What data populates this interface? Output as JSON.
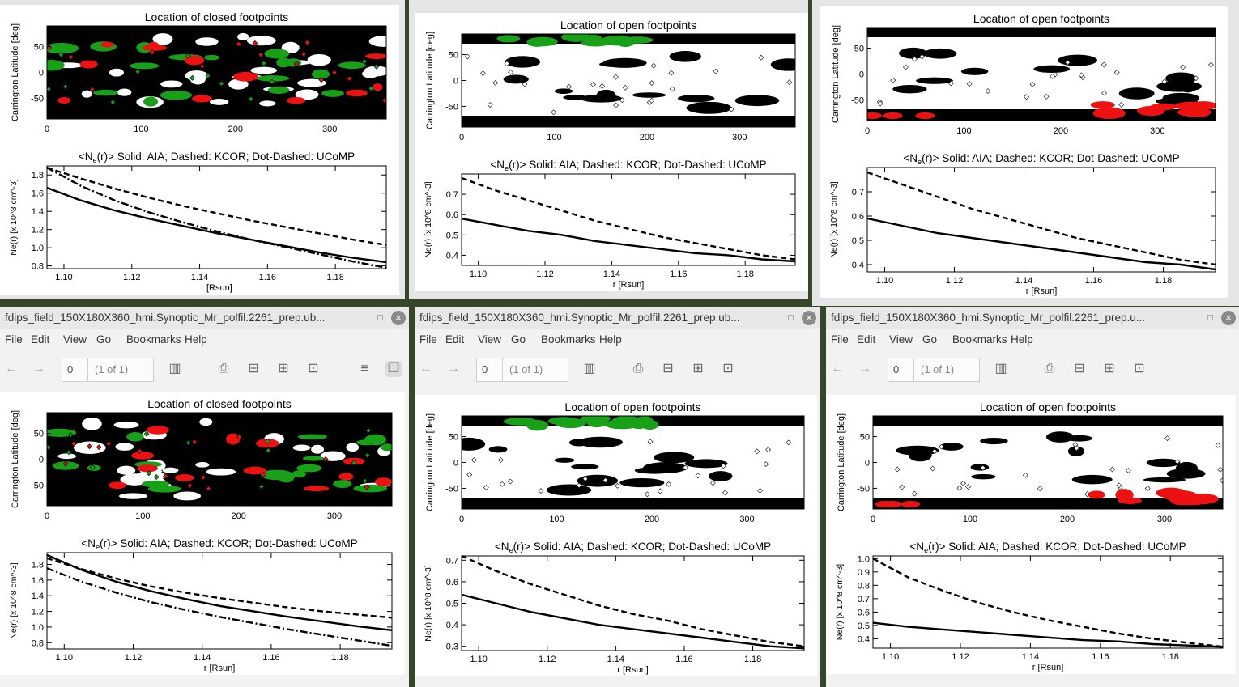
{
  "desktop": {
    "viewers": [
      {
        "title": "",
        "show_chrome": false,
        "page_value": "",
        "page_of": ""
      },
      {
        "title": "",
        "show_chrome": false,
        "page_value": "",
        "page_of": ""
      },
      {
        "title": "",
        "show_chrome": false,
        "page_value": "",
        "page_of": ""
      },
      {
        "title": "fdips_field_150X180X360_hmi.Synoptic_Mr_polfil.2261_prep.ub...",
        "show_chrome": true,
        "page_value": "0",
        "page_of": "(1 of 1)"
      },
      {
        "title": "fdips_field_150X180X360_hmi.Synoptic_Mr_polfil.2261_prep.ub...",
        "show_chrome": true,
        "page_value": "0",
        "page_of": "(1 of 1)"
      },
      {
        "title": "fdips_field_150X180X360_hmi.Synoptic_Mr_polfil.2261_prep.u...",
        "show_chrome": true,
        "page_value": "0",
        "page_of": "(1 of 1)"
      }
    ],
    "menu": [
      "File",
      "Edit",
      "View",
      "Go",
      "Bookmarks",
      "Help"
    ]
  },
  "plots": [
    {
      "map_title": "Location of closed footpoints",
      "kind": "closed",
      "map_ylabel": "Carrington Latitude [deg]",
      "map_yticks": [
        "50",
        "0",
        "-50"
      ],
      "map_xticks": [
        "0",
        "100",
        "200",
        "300"
      ],
      "ne_title": "Solid: AIA; Dashed: KCOR; Dot-Dashed: UCoMP",
      "ne_ylabel": "Ne(r) [x 10^8 cm^-3]",
      "ne_xlabel": "r [Rsun]",
      "ne_xticks": [
        "1.10",
        "1.12",
        "1.14",
        "1.16",
        "1.18"
      ],
      "ne_yticks": [
        "1.8",
        "1.6",
        "1.4",
        "1.2",
        "1.0",
        "0.8"
      ],
      "ylim": [
        0.77,
        1.9
      ]
    },
    {
      "map_title": "Location of open footpoints",
      "kind": "open-north",
      "map_ylabel": "Carrington Latitude [deg]",
      "map_yticks": [
        "50",
        "0",
        "-50"
      ],
      "map_xticks": [
        "0",
        "100",
        "200",
        "300"
      ],
      "ne_title": "Solid: AIA; Dashed: KCOR; Dot-Dashed: UCoMP",
      "ne_ylabel": "Ne(r) [x 10^8 cm^-3]",
      "ne_xlabel": "r [Rsun]",
      "ne_xticks": [
        "1.10",
        "1.12",
        "1.14",
        "1.16",
        "1.18"
      ],
      "ne_yticks": [
        "0.7",
        "0.6",
        "0.5",
        "0.4"
      ],
      "ylim": [
        0.35,
        0.8
      ]
    },
    {
      "map_title": "Location of open footpoints",
      "kind": "open-south",
      "map_ylabel": "Carrington Latitude [deg]",
      "map_yticks": [
        "50",
        "0",
        "-50"
      ],
      "map_xticks": [
        "0",
        "100",
        "200",
        "300"
      ],
      "ne_title": "Solid: AIA; Dashed: KCOR; Dot-Dashed: UCoMP",
      "ne_ylabel": "Ne(r) [x 10^8 cm^-3]",
      "ne_xlabel": "r [Rsun]",
      "ne_xticks": [
        "1.10",
        "1.12",
        "1.14",
        "1.16",
        "1.18"
      ],
      "ne_yticks": [
        "0.7",
        "0.6",
        "0.5",
        "0.4"
      ],
      "ylim": [
        0.37,
        0.8
      ]
    },
    {
      "map_title": "Location of closed footpoints",
      "kind": "closed",
      "map_ylabel": "Carrington Latitude [deg]",
      "map_yticks": [
        "50",
        "0",
        "-50"
      ],
      "map_xticks": [
        "0",
        "100",
        "200",
        "300"
      ],
      "ne_title": "Solid: AIA; Dashed: KCOR; Dot-Dashed: UCoMP",
      "ne_ylabel": "Ne(r) [x 10^8 cm^-3]",
      "ne_xlabel": "r [Rsun]",
      "ne_xticks": [
        "1.10",
        "1.12",
        "1.14",
        "1.16",
        "1.18"
      ],
      "ne_yticks": [
        "1.8",
        "1.6",
        "1.4",
        "1.2",
        "1.0",
        "0.8"
      ],
      "ylim": [
        0.72,
        1.95
      ]
    },
    {
      "map_title": "Location of open footpoints",
      "kind": "open-north",
      "map_ylabel": "Carrington Latitude [deg]",
      "map_yticks": [
        "50",
        "0",
        "-50"
      ],
      "map_xticks": [
        "0",
        "100",
        "200",
        "300"
      ],
      "ne_title": "Solid: AIA; Dashed: KCOR; Dot-Dashed: UCoMP",
      "ne_ylabel": "Ne(r) [x 10^8 cm^-3]",
      "ne_xlabel": "r [Rsun]",
      "ne_xticks": [
        "1.10",
        "1.12",
        "1.14",
        "1.16",
        "1.18"
      ],
      "ne_yticks": [
        "0.7",
        "0.6",
        "0.5",
        "0.4",
        "0.3"
      ],
      "ylim": [
        0.28,
        0.72
      ]
    },
    {
      "map_title": "Location of open footpoints",
      "kind": "open-south",
      "map_ylabel": "Carrington Latitude [deg]",
      "map_yticks": [
        "50",
        "0",
        "-50"
      ],
      "map_xticks": [
        "0",
        "100",
        "200",
        "300"
      ],
      "ne_title": "Solid: AIA; Dashed: KCOR; Dot-Dashed: UCoMP",
      "ne_ylabel": "Ne(r) [x 10^8 cm^-3]",
      "ne_xlabel": "r [Rsun]",
      "ne_xticks": [
        "1.10",
        "1.12",
        "1.14",
        "1.16",
        "1.18"
      ],
      "ne_yticks": [
        "1.0",
        "0.9",
        "0.8",
        "0.7",
        "0.6",
        "0.5",
        "0.4"
      ],
      "ylim": [
        0.33,
        1.02
      ]
    }
  ],
  "chart_data": [
    {
      "type": "line",
      "title": "<Ne(r)>  Solid: AIA; Dashed: KCOR; Dot-Dashed: UCoMP",
      "xlabel": "r [Rsun]",
      "ylabel": "Ne(r) [x 10^8 cm^-3]",
      "xlim": [
        1.095,
        1.195
      ],
      "ylim": [
        0.77,
        1.9
      ],
      "x": [
        1.095,
        1.105,
        1.115,
        1.125,
        1.135,
        1.145,
        1.155,
        1.165,
        1.175,
        1.185,
        1.195
      ],
      "series": [
        {
          "name": "AIA",
          "values": [
            1.66,
            1.52,
            1.41,
            1.32,
            1.24,
            1.16,
            1.09,
            1.02,
            0.95,
            0.89,
            0.84
          ]
        },
        {
          "name": "KCOR",
          "values": [
            1.88,
            1.76,
            1.65,
            1.55,
            1.46,
            1.38,
            1.3,
            1.23,
            1.16,
            1.09,
            1.03
          ]
        },
        {
          "name": "UCoMP",
          "values": [
            1.88,
            1.68,
            1.52,
            1.39,
            1.28,
            1.18,
            1.09,
            1.01,
            0.93,
            0.85,
            0.78
          ]
        }
      ]
    },
    {
      "type": "line",
      "title": "<Ne(r)>  Solid: AIA; Dashed: KCOR; Dot-Dashed: UCoMP",
      "xlabel": "r [Rsun]",
      "ylabel": "Ne(r) [x 10^8 cm^-3]",
      "xlim": [
        1.095,
        1.195
      ],
      "ylim": [
        0.35,
        0.8
      ],
      "x": [
        1.095,
        1.105,
        1.115,
        1.125,
        1.135,
        1.145,
        1.155,
        1.165,
        1.175,
        1.185,
        1.195
      ],
      "series": [
        {
          "name": "AIA",
          "values": [
            0.58,
            0.55,
            0.52,
            0.5,
            0.47,
            0.45,
            0.43,
            0.41,
            0.4,
            0.38,
            0.37
          ]
        },
        {
          "name": "KCOR",
          "values": [
            0.78,
            0.72,
            0.67,
            0.62,
            0.57,
            0.53,
            0.49,
            0.46,
            0.43,
            0.4,
            0.38
          ]
        }
      ]
    },
    {
      "type": "line",
      "title": "<Ne(r)>  Solid: AIA; Dashed: KCOR; Dot-Dashed: UCoMP",
      "xlabel": "r [Rsun]",
      "ylabel": "Ne(r) [x 10^8 cm^-3]",
      "xlim": [
        1.095,
        1.195
      ],
      "ylim": [
        0.37,
        0.8
      ],
      "x": [
        1.095,
        1.105,
        1.115,
        1.125,
        1.135,
        1.145,
        1.155,
        1.165,
        1.175,
        1.185,
        1.195
      ],
      "series": [
        {
          "name": "AIA",
          "values": [
            0.59,
            0.56,
            0.53,
            0.51,
            0.49,
            0.47,
            0.45,
            0.43,
            0.41,
            0.4,
            0.38
          ]
        },
        {
          "name": "KCOR",
          "values": [
            0.78,
            0.73,
            0.68,
            0.63,
            0.59,
            0.55,
            0.51,
            0.48,
            0.45,
            0.42,
            0.4
          ]
        }
      ]
    },
    {
      "type": "line",
      "title": "<Ne(r)>  Solid: AIA; Dashed: KCOR; Dot-Dashed: UCoMP",
      "xlabel": "r [Rsun]",
      "ylabel": "Ne(r) [x 10^8 cm^-3]",
      "xlim": [
        1.095,
        1.195
      ],
      "ylim": [
        0.72,
        1.95
      ],
      "x": [
        1.095,
        1.105,
        1.115,
        1.125,
        1.135,
        1.145,
        1.155,
        1.165,
        1.175,
        1.185,
        1.195
      ],
      "series": [
        {
          "name": "AIA",
          "values": [
            1.92,
            1.73,
            1.58,
            1.46,
            1.36,
            1.27,
            1.2,
            1.13,
            1.07,
            1.01,
            0.96
          ]
        },
        {
          "name": "KCOR",
          "values": [
            1.88,
            1.74,
            1.62,
            1.52,
            1.44,
            1.37,
            1.31,
            1.25,
            1.2,
            1.16,
            1.12
          ]
        },
        {
          "name": "UCoMP",
          "values": [
            1.75,
            1.58,
            1.44,
            1.32,
            1.22,
            1.13,
            1.05,
            0.97,
            0.9,
            0.83,
            0.76
          ]
        }
      ]
    },
    {
      "type": "line",
      "title": "<Ne(r)>  Solid: AIA; Dashed: KCOR; Dot-Dashed: UCoMP",
      "xlabel": "r [Rsun]",
      "ylabel": "Ne(r) [x 10^8 cm^-3]",
      "xlim": [
        1.095,
        1.195
      ],
      "ylim": [
        0.28,
        0.72
      ],
      "x": [
        1.095,
        1.105,
        1.115,
        1.125,
        1.135,
        1.145,
        1.155,
        1.165,
        1.175,
        1.185,
        1.195
      ],
      "series": [
        {
          "name": "AIA",
          "values": [
            0.54,
            0.5,
            0.46,
            0.43,
            0.4,
            0.38,
            0.36,
            0.34,
            0.32,
            0.3,
            0.29
          ]
        },
        {
          "name": "KCOR",
          "values": [
            0.72,
            0.65,
            0.59,
            0.54,
            0.49,
            0.45,
            0.42,
            0.38,
            0.35,
            0.32,
            0.3
          ]
        }
      ]
    },
    {
      "type": "line",
      "title": "<Ne(r)>  Solid: AIA; Dashed: KCOR; Dot-Dashed: UCoMP",
      "xlabel": "r [Rsun]",
      "ylabel": "Ne(r) [x 10^8 cm^-3]",
      "xlim": [
        1.095,
        1.195
      ],
      "ylim": [
        0.33,
        1.02
      ],
      "x": [
        1.095,
        1.105,
        1.115,
        1.125,
        1.135,
        1.145,
        1.155,
        1.165,
        1.175,
        1.185,
        1.195
      ],
      "series": [
        {
          "name": "AIA",
          "values": [
            0.52,
            0.49,
            0.47,
            0.45,
            0.43,
            0.41,
            0.39,
            0.38,
            0.36,
            0.35,
            0.34
          ]
        },
        {
          "name": "KCOR",
          "values": [
            1.0,
            0.86,
            0.76,
            0.67,
            0.6,
            0.54,
            0.49,
            0.44,
            0.4,
            0.37,
            0.34
          ]
        }
      ]
    }
  ],
  "colors": {
    "closed_green": "#18a018",
    "open_red": "#ee1111",
    "black": "#000000"
  },
  "icons": [
    "back-arrow-icon",
    "forward-arrow-icon",
    "sidebar-icon",
    "print-icon",
    "zoom-out-icon",
    "zoom-in-icon",
    "fit-page-icon",
    "continuous-icon",
    "dual-page-icon",
    "close-icon",
    "minimize-icon"
  ]
}
